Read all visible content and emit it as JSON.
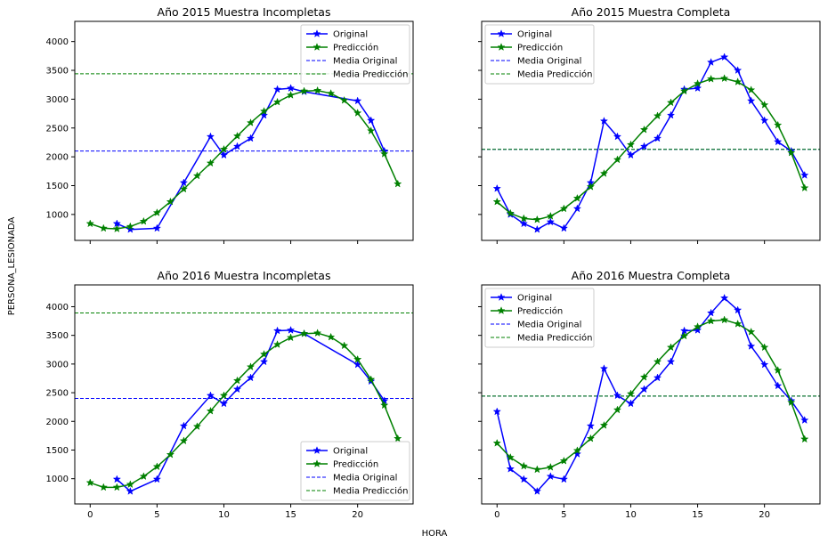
{
  "figure": {
    "xlabel": "HORA",
    "ylabel": "PERSONA_LESIONADA",
    "colors": {
      "original": "#0000ff",
      "prediction": "#008000"
    }
  },
  "chart_data": [
    {
      "type": "line",
      "title": "Año 2015 Muestra Incompletas",
      "legend": "top-right",
      "ylim": [
        550,
        4350
      ],
      "yticks": [
        1000,
        1500,
        2000,
        2500,
        3000,
        3500,
        4000
      ],
      "xlim": [
        -1.15,
        24.15
      ],
      "xticks": [
        0,
        5,
        10,
        15,
        20
      ],
      "series": [
        {
          "name": "Original",
          "style": "line-star",
          "color": "#0000ff",
          "x": [
            2,
            3,
            5,
            7,
            9,
            10,
            11,
            12,
            13,
            14,
            15,
            16,
            20,
            21,
            22
          ],
          "y": [
            840,
            740,
            760,
            1550,
            2350,
            2030,
            2180,
            2320,
            2720,
            3170,
            3190,
            3130,
            2970,
            2630,
            2100
          ]
        },
        {
          "name": "Predicción",
          "style": "line-star",
          "color": "#008000",
          "x": [
            0,
            1,
            2,
            3,
            4,
            5,
            6,
            7,
            8,
            9,
            10,
            11,
            12,
            13,
            14,
            15,
            16,
            17,
            18,
            19,
            20,
            21,
            22,
            23
          ],
          "y": [
            840,
            760,
            750,
            790,
            880,
            1030,
            1220,
            1440,
            1670,
            1890,
            2130,
            2360,
            2590,
            2790,
            2950,
            3070,
            3140,
            3150,
            3100,
            2980,
            2760,
            2450,
            2050,
            1530
          ]
        },
        {
          "name": "Media Original",
          "style": "hline-dashed",
          "color": "#0000ff",
          "y": 2100
        },
        {
          "name": "Media Predicción",
          "style": "hline-dashed",
          "color": "#008000",
          "y": 3440
        }
      ]
    },
    {
      "type": "line",
      "title": "Año 2015 Muestra Completa",
      "legend": "top-left",
      "ylim": [
        550,
        4350
      ],
      "yticks": [
        1000,
        1500,
        2000,
        2500,
        3000,
        3500,
        4000
      ],
      "xlim": [
        -1.15,
        24.15
      ],
      "xticks": [
        0,
        5,
        10,
        15,
        20
      ],
      "series": [
        {
          "name": "Original",
          "style": "line-star",
          "color": "#0000ff",
          "x": [
            0,
            1,
            2,
            3,
            4,
            5,
            6,
            7,
            8,
            9,
            10,
            11,
            12,
            13,
            14,
            15,
            16,
            17,
            18,
            19,
            20,
            21,
            22,
            23
          ],
          "y": [
            1450,
            1000,
            840,
            740,
            870,
            760,
            1100,
            1550,
            2620,
            2350,
            2030,
            2180,
            2320,
            2720,
            3170,
            3190,
            3640,
            3730,
            3500,
            2970,
            2630,
            2260,
            2100,
            1680
          ]
        },
        {
          "name": "Predicción",
          "style": "line-star",
          "color": "#008000",
          "x": [
            0,
            1,
            2,
            3,
            4,
            5,
            6,
            7,
            8,
            9,
            10,
            11,
            12,
            13,
            14,
            15,
            16,
            17,
            18,
            19,
            20,
            21,
            22,
            23
          ],
          "y": [
            1220,
            1020,
            930,
            910,
            970,
            1100,
            1280,
            1480,
            1710,
            1950,
            2210,
            2470,
            2710,
            2940,
            3140,
            3270,
            3350,
            3360,
            3300,
            3160,
            2900,
            2550,
            2070,
            1460
          ]
        },
        {
          "name": "Media Original",
          "style": "hline-dashed",
          "color": "#0000ff",
          "y": 2130
        },
        {
          "name": "Media Predicción",
          "style": "hline-dashed",
          "color": "#008000",
          "y": 2130
        }
      ]
    },
    {
      "type": "line",
      "title": "Año 2016 Muestra Incompletas",
      "legend": "bottom-right",
      "ylim": [
        560,
        4380
      ],
      "yticks": [
        1000,
        1500,
        2000,
        2500,
        3000,
        3500,
        4000
      ],
      "xlim": [
        -1.15,
        24.15
      ],
      "xticks": [
        0,
        5,
        10,
        15,
        20
      ],
      "series": [
        {
          "name": "Original",
          "style": "line-star",
          "color": "#0000ff",
          "x": [
            2,
            3,
            5,
            7,
            9,
            10,
            11,
            12,
            13,
            14,
            15,
            16,
            20,
            21,
            22
          ],
          "y": [
            990,
            780,
            990,
            1920,
            2450,
            2310,
            2560,
            2760,
            3040,
            3580,
            3590,
            3530,
            2990,
            2700,
            2360
          ]
        },
        {
          "name": "Predicción",
          "style": "line-star",
          "color": "#008000",
          "x": [
            0,
            1,
            2,
            3,
            4,
            5,
            6,
            7,
            8,
            9,
            10,
            11,
            12,
            13,
            14,
            15,
            16,
            17,
            18,
            19,
            20,
            21,
            22,
            23
          ],
          "y": [
            930,
            850,
            850,
            900,
            1040,
            1210,
            1420,
            1660,
            1910,
            2180,
            2450,
            2710,
            2950,
            3170,
            3340,
            3460,
            3530,
            3540,
            3470,
            3320,
            3080,
            2730,
            2280,
            1700
          ]
        },
        {
          "name": "Media Original",
          "style": "hline-dashed",
          "color": "#0000ff",
          "y": 2400
        },
        {
          "name": "Media Predicción",
          "style": "hline-dashed",
          "color": "#008000",
          "y": 3890
        }
      ]
    },
    {
      "type": "line",
      "title": "Año 2016 Muestra Completa",
      "legend": "top-left",
      "ylim": [
        560,
        4380
      ],
      "yticks": [
        1000,
        1500,
        2000,
        2500,
        3000,
        3500,
        4000
      ],
      "xlim": [
        -1.15,
        24.15
      ],
      "xticks": [
        0,
        5,
        10,
        15,
        20
      ],
      "series": [
        {
          "name": "Original",
          "style": "line-star",
          "color": "#0000ff",
          "x": [
            0,
            1,
            2,
            3,
            4,
            5,
            6,
            7,
            8,
            9,
            10,
            11,
            12,
            13,
            14,
            15,
            16,
            17,
            18,
            19,
            20,
            21,
            22,
            23
          ],
          "y": [
            2170,
            1170,
            990,
            780,
            1040,
            990,
            1430,
            1920,
            2920,
            2450,
            2310,
            2560,
            2760,
            3040,
            3580,
            3590,
            3890,
            4150,
            3940,
            3310,
            2990,
            2620,
            2360,
            2020
          ]
        },
        {
          "name": "Predicción",
          "style": "line-star",
          "color": "#008000",
          "x": [
            0,
            1,
            2,
            3,
            4,
            5,
            6,
            7,
            8,
            9,
            10,
            11,
            12,
            13,
            14,
            15,
            16,
            17,
            18,
            19,
            20,
            21,
            22,
            23
          ],
          "y": [
            1620,
            1370,
            1220,
            1160,
            1200,
            1310,
            1490,
            1700,
            1930,
            2200,
            2480,
            2770,
            3040,
            3290,
            3490,
            3650,
            3750,
            3770,
            3700,
            3560,
            3290,
            2890,
            2330,
            1690
          ]
        },
        {
          "name": "Media Original",
          "style": "hline-dashed",
          "color": "#0000ff",
          "y": 2440
        },
        {
          "name": "Media Predicción",
          "style": "hline-dashed",
          "color": "#008000",
          "y": 2440
        }
      ]
    }
  ]
}
